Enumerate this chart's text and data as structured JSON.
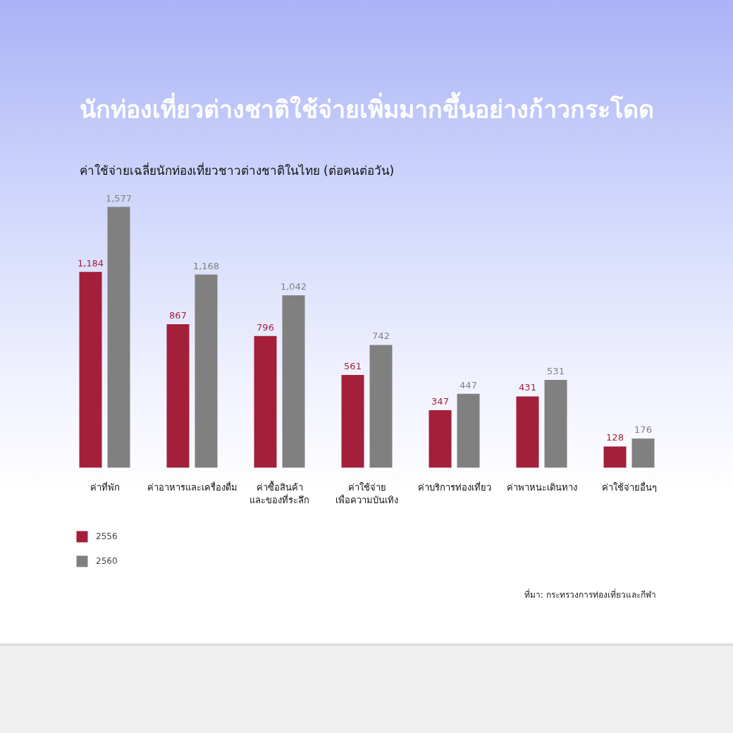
{
  "chart_data": {
    "type": "bar",
    "title": "นักท่องเที่ยวต่างชาติใช้จ่ายเพิ่มมากขึ้นอย่างก้าวกระโดด",
    "subtitle": "ค่าใช้จ่ายเฉลี่ยนักท่องเที่ยวชาวต่างชาติในไทย (ต่อคนต่อวัน)",
    "categories": [
      "ค่าที่พัก",
      "ค่าอาหารและเครื่องดื่ม",
      "ค่าซื้อสินค้า\nและของที่ระลึก",
      "ค่าใช้จ่าย\nเพื่อความบันเทิง",
      "ค่าบริการท่องเที่ยว",
      "ค่าพาหนะเดินทาง",
      "ค่าใช้จ่ายอื่นๆ"
    ],
    "series": [
      {
        "name": "2556",
        "color": "#a31f3a",
        "values": [
          1184,
          867,
          796,
          561,
          347,
          431,
          128
        ],
        "value_labels": [
          "1,184",
          "867",
          "796",
          "561",
          "347",
          "431",
          "128"
        ]
      },
      {
        "name": "2560",
        "color": "#808080",
        "values": [
          1577,
          1168,
          1042,
          742,
          447,
          531,
          176
        ],
        "value_labels": [
          "1,577",
          "1,168",
          "1,042",
          "742",
          "447",
          "531",
          "176"
        ]
      }
    ],
    "legend": "bottom left",
    "annotations": [
      "ที่มา: กระทรวงการท่องเที่ยวและกีฬา"
    ]
  }
}
